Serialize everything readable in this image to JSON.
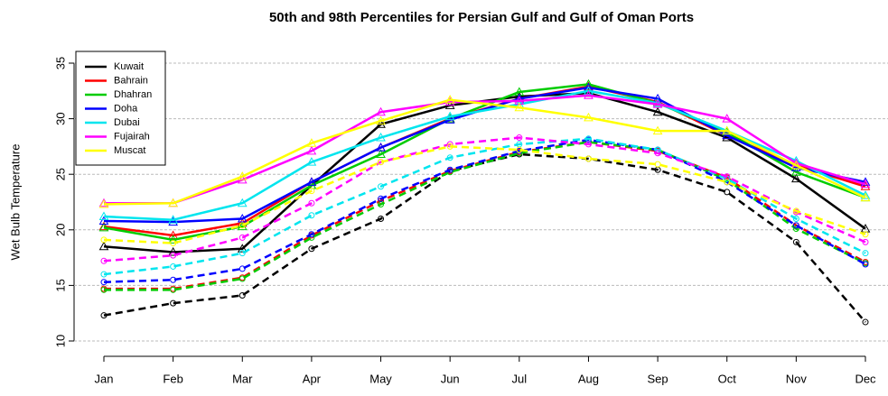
{
  "chart_data": {
    "type": "line",
    "title": "50th and 98th Percentiles for  Persian Gulf and Gulf of Oman Ports",
    "y_label": "Wet Bulb Temperature",
    "categories": [
      "Jan",
      "Feb",
      "Mar",
      "Apr",
      "May",
      "Jun",
      "Jul",
      "Aug",
      "Sep",
      "Oct",
      "Nov",
      "Dec"
    ],
    "ylim": [
      10,
      35
    ],
    "yticks": [
      10,
      15,
      20,
      25,
      30,
      35
    ],
    "grid": true,
    "legend": "top-left",
    "series": [
      {
        "name": "Kuwait",
        "color": "#000000",
        "values": [
          18.5,
          18,
          18.3,
          24,
          29.5,
          31.2,
          32,
          32.3,
          30.6,
          28.3,
          24.6,
          20.1
        ],
        "p50": [
          12.3,
          13.4,
          14.1,
          18.3,
          21,
          25.3,
          26.8,
          26.4,
          25.4,
          23.4,
          18.9,
          11.7
        ]
      },
      {
        "name": "Bahrain",
        "color": "#ff0000",
        "values": [
          20.3,
          19.5,
          20.6,
          24.3,
          27.4,
          30,
          31.8,
          32.9,
          31.5,
          28.5,
          25.8,
          23.9
        ],
        "p50": [
          14.7,
          14.7,
          15.7,
          19.5,
          22.6,
          25.3,
          27,
          27.9,
          27.1,
          24.7,
          20.4,
          17.1
        ]
      },
      {
        "name": "Dhahran",
        "color": "#00cc00",
        "values": [
          20.2,
          19.1,
          20.3,
          24,
          26.8,
          30,
          32.4,
          33.1,
          31.4,
          28.8,
          25.2,
          22.9
        ],
        "p50": [
          14.6,
          14.6,
          15.6,
          19.3,
          22.3,
          25.2,
          26.9,
          27.9,
          27.2,
          24.5,
          20.1,
          17
        ]
      },
      {
        "name": "Doha",
        "color": "#0000ff",
        "values": [
          20.8,
          20.7,
          21,
          24.3,
          27.4,
          29.9,
          31.8,
          32.8,
          31.8,
          28.5,
          25.6,
          24.3
        ],
        "p50": [
          15.3,
          15.5,
          16.5,
          19.6,
          22.8,
          25.4,
          27.1,
          28.1,
          27.2,
          24.3,
          20.4,
          16.9
        ]
      },
      {
        "name": "Dubai",
        "color": "#00e5ee",
        "values": [
          21.2,
          20.9,
          22.4,
          26.1,
          28.3,
          30.2,
          31.3,
          32.5,
          31.4,
          28.9,
          26.2,
          23.1
        ],
        "p50": [
          16,
          16.7,
          17.9,
          21.3,
          23.9,
          26.5,
          27.7,
          28.2,
          27.2,
          24.6,
          21,
          17.9
        ]
      },
      {
        "name": "Fujairah",
        "color": "#ff00ff",
        "values": [
          22.4,
          22.4,
          24.5,
          27.1,
          30.6,
          31.5,
          31.6,
          32.1,
          31.3,
          30,
          26,
          24.1
        ],
        "p50": [
          17.2,
          17.7,
          19.3,
          22.4,
          26.1,
          27.7,
          28.3,
          27.7,
          26.9,
          24.8,
          21.6,
          18.9
        ]
      },
      {
        "name": "Muscat",
        "color": "#ffff00",
        "values": [
          22.3,
          22.4,
          24.8,
          27.8,
          29.8,
          31.7,
          31,
          30.1,
          28.9,
          28.9,
          25.8,
          22.9
        ],
        "p50": [
          19.1,
          18.8,
          20.4,
          23.5,
          26.1,
          27.5,
          27.2,
          26.4,
          25.9,
          24.3,
          21.7,
          19.6
        ]
      }
    ]
  }
}
